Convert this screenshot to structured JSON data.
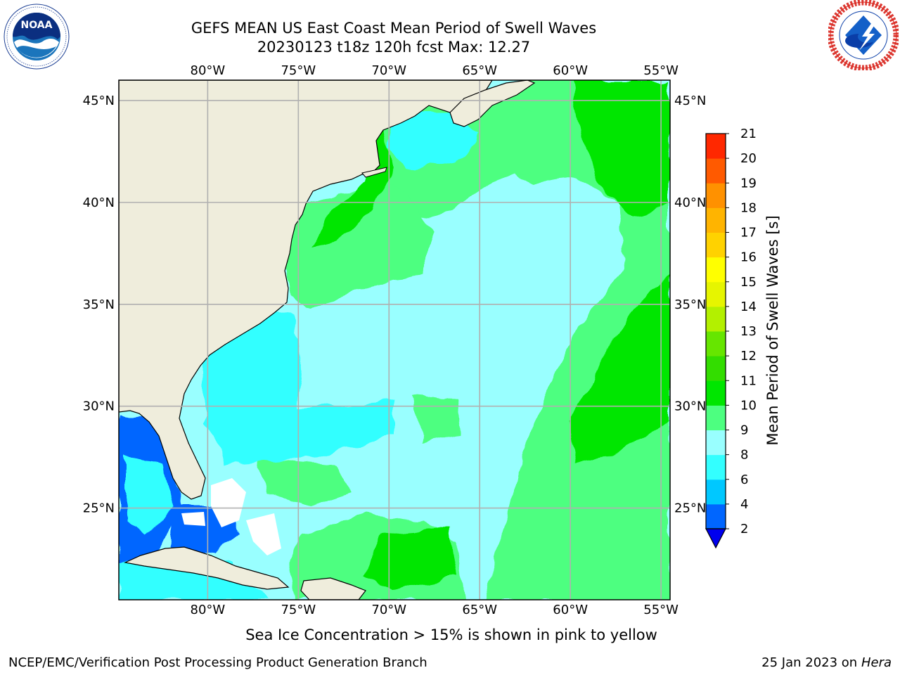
{
  "title": {
    "line1": "GEFS MEAN US East Coast Mean Period of Swell Waves",
    "line2": "20230123 t18z 120h fcst   Max: 12.27"
  },
  "logos": {
    "left": {
      "icon": "noaa-logo",
      "text": "NOAA",
      "ring_text": "NATIONAL OCEANIC AND ATMOSPHERIC ADMINISTRATION · U.S. DEPARTMENT OF COMMERCE"
    },
    "right": {
      "icon": "nws-logo",
      "ring_text": "NATIONAL WEATHER SERVICE"
    }
  },
  "map": {
    "projection": "lat-lon",
    "lon_range": [
      -84.9,
      -54.5
    ],
    "lat_range": [
      20.5,
      46.0
    ],
    "lon_ticks": [
      {
        "value": -80,
        "label": "80°W"
      },
      {
        "value": -75,
        "label": "75°W"
      },
      {
        "value": -70,
        "label": "70°W"
      },
      {
        "value": -65,
        "label": "65°W"
      },
      {
        "value": -60,
        "label": "60°W"
      },
      {
        "value": -55,
        "label": "55°W"
      }
    ],
    "lat_ticks": [
      {
        "value": 45,
        "label": "45°N"
      },
      {
        "value": 40,
        "label": "40°N"
      },
      {
        "value": 35,
        "label": "35°N"
      },
      {
        "value": 30,
        "label": "30°N"
      },
      {
        "value": 25,
        "label": "25°N"
      }
    ],
    "grid": true,
    "colors": {
      "land": "#efeddc",
      "coast": "#000000",
      "grid": "#b0b0b0",
      "missing": "#ffffff"
    }
  },
  "colorbar": {
    "label": "Mean Period of Swell Waves [s]",
    "ticks": [
      "2",
      "4",
      "6",
      "8",
      "9",
      "10",
      "11",
      "12",
      "13",
      "14",
      "15",
      "16",
      "17",
      "18",
      "19",
      "20",
      "21"
    ],
    "colors": [
      "#0066ff",
      "#00c8ff",
      "#33ffff",
      "#99ffff",
      "#4dff80",
      "#00e600",
      "#33dd00",
      "#66e600",
      "#b3f000",
      "#e6f500",
      "#ffff00",
      "#ffd200",
      "#ffb400",
      "#ff9100",
      "#ff5a00",
      "#ff2800",
      "#ff0000"
    ],
    "extend_color": "#0000ee"
  },
  "chart_data": {
    "type": "heatmap",
    "variable": "Mean Period of Swell Waves",
    "units": "s",
    "max": 12.27,
    "regions": [
      {
        "area": "central and southern open Atlantic",
        "period_s": "8-9"
      },
      {
        "area": "east of 60°W",
        "period_s": "9-11"
      },
      {
        "area": "south of Nova Scotia / north of 40°N",
        "period_s": "9-10"
      },
      {
        "area": "off Cape Hatteras",
        "period_s": "9-12"
      },
      {
        "area": "Gulf of Mexico / Florida Straits",
        "period_s": "2-6"
      },
      {
        "area": "southeast US coastal waters",
        "period_s": "6-8"
      }
    ]
  },
  "notes": {
    "ice": "Sea Ice Concentration > 15% is shown in pink to yellow",
    "footer_left": "NCEP/EMC/Verification Post Processing Product Generation Branch",
    "footer_date": "25 Jan 2023 on",
    "footer_host": "Hera"
  }
}
